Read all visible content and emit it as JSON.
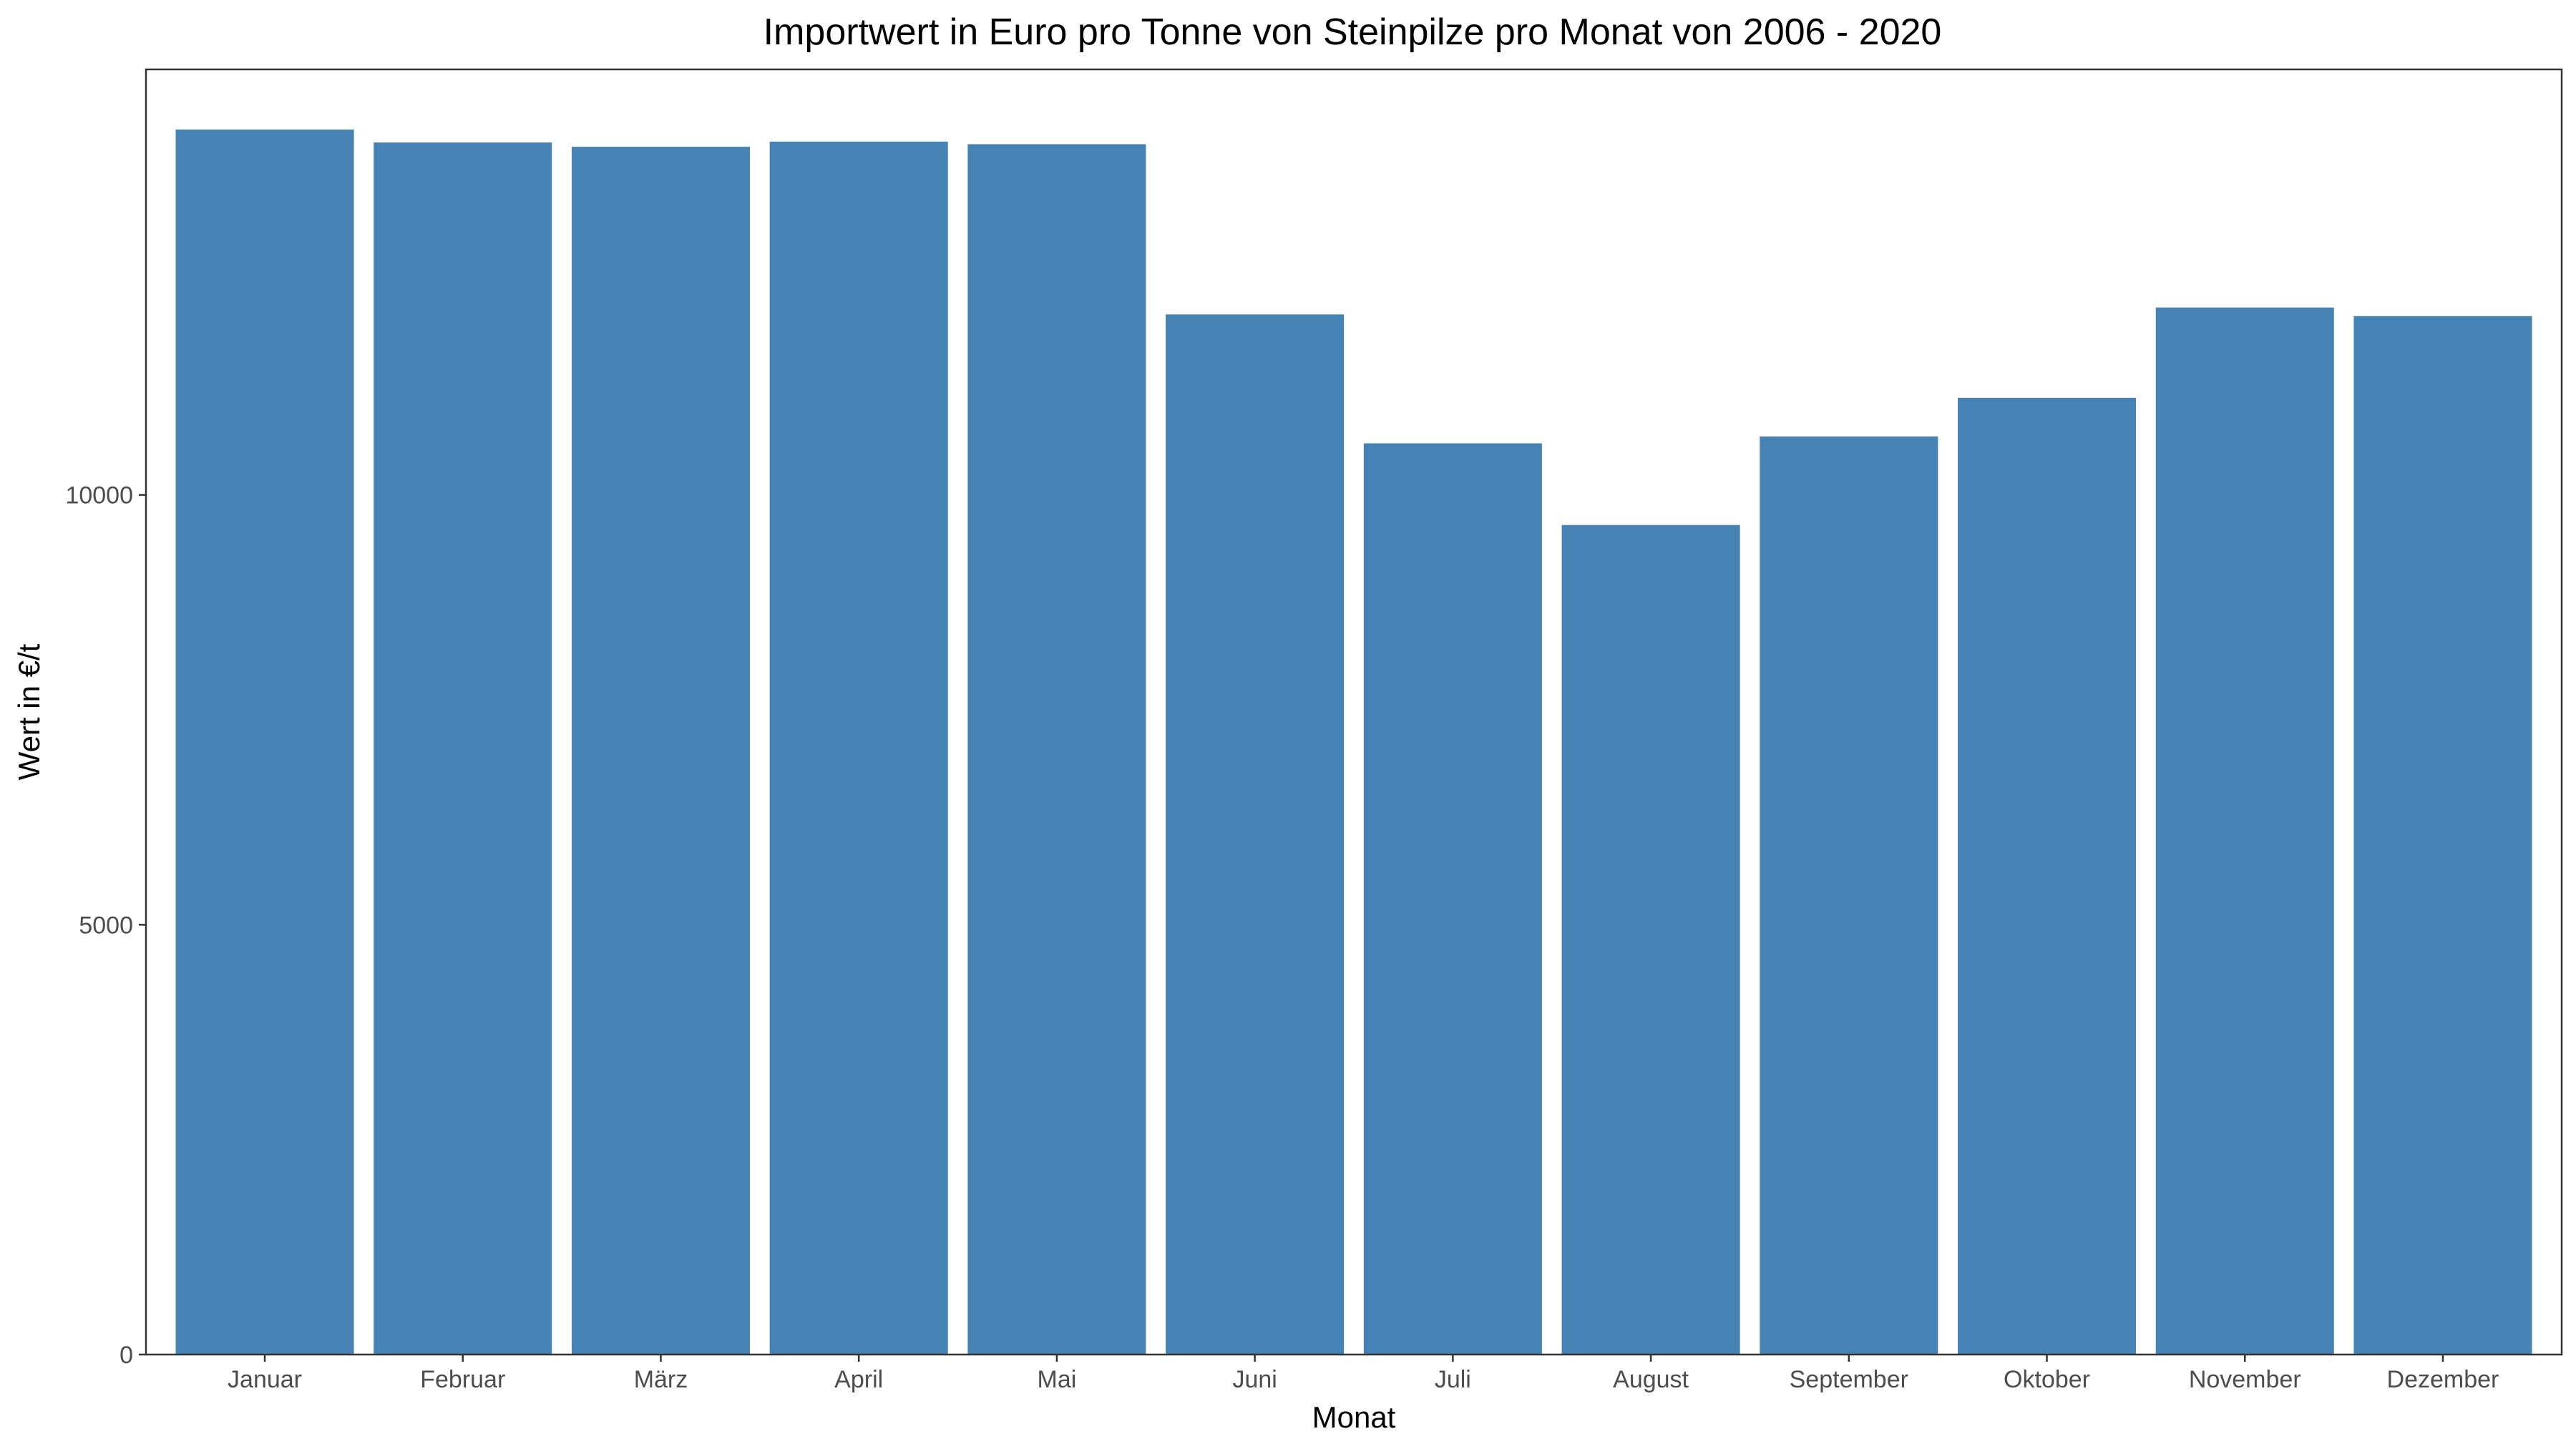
{
  "chart_data": {
    "type": "bar",
    "title": "Importwert in Euro pro Tonne von Steinpilze pro Monat von 2006 - 2020",
    "xlabel": "Monat",
    "ylabel": "Wert in €/t",
    "categories": [
      "Januar",
      "Februar",
      "März",
      "April",
      "Mai",
      "Juni",
      "Juli",
      "August",
      "September",
      "Oktober",
      "November",
      "Dezember"
    ],
    "values": [
      14250,
      14100,
      14050,
      14110,
      14080,
      12100,
      10600,
      9650,
      10680,
      11130,
      12180,
      12080
    ],
    "ylim": [
      0,
      14950
    ],
    "yticks": [
      0,
      5000,
      10000
    ],
    "ytick_labels": [
      "0",
      "5000",
      "10000"
    ],
    "bar_color": "#4682b4",
    "grid": false,
    "legend": "none"
  }
}
